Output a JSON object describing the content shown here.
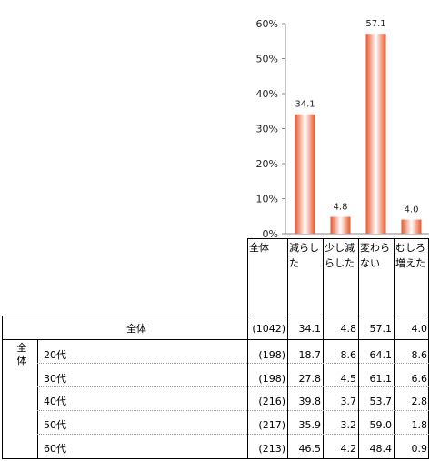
{
  "chart_data": {
    "type": "bar",
    "categories": [
      "減らした",
      "少し減らした",
      "変わらない",
      "むしろ増えた"
    ],
    "header_lines": [
      [
        "減らし",
        "た"
      ],
      [
        "少し減",
        "らした"
      ],
      [
        "変わら",
        "ない"
      ],
      [
        "むしろ",
        "増えた"
      ]
    ],
    "values": [
      34.1,
      4.8,
      57.1,
      4.0
    ],
    "value_labels": [
      "34.1",
      "4.8",
      "57.1",
      "4.0"
    ],
    "yticks": [
      "0%",
      "10%",
      "20%",
      "30%",
      "40%",
      "50%",
      "60%"
    ],
    "ylim": [
      0,
      60
    ],
    "grid": false,
    "colors": {
      "bar_edge": "#e8552a",
      "bar_center": "#ffffff",
      "bar_mid": "#f4906a"
    }
  },
  "table": {
    "header_total_label": "全体",
    "total_row": {
      "label": "全体",
      "n": "(1042)",
      "values": [
        "34.1",
        "4.8",
        "57.1",
        "4.0"
      ]
    },
    "group_label": "全体",
    "rows": [
      {
        "label": "20代",
        "n": "(198)",
        "values": [
          "18.7",
          "8.6",
          "64.1",
          "8.6"
        ]
      },
      {
        "label": "30代",
        "n": "(198)",
        "values": [
          "27.8",
          "4.5",
          "61.1",
          "6.6"
        ]
      },
      {
        "label": "40代",
        "n": "(216)",
        "values": [
          "39.8",
          "3.7",
          "53.7",
          "2.8"
        ]
      },
      {
        "label": "50代",
        "n": "(217)",
        "values": [
          "35.9",
          "3.2",
          "59.0",
          "1.8"
        ]
      },
      {
        "label": "60代",
        "n": "(213)",
        "values": [
          "46.5",
          "4.2",
          "48.4",
          "0.9"
        ]
      }
    ]
  }
}
